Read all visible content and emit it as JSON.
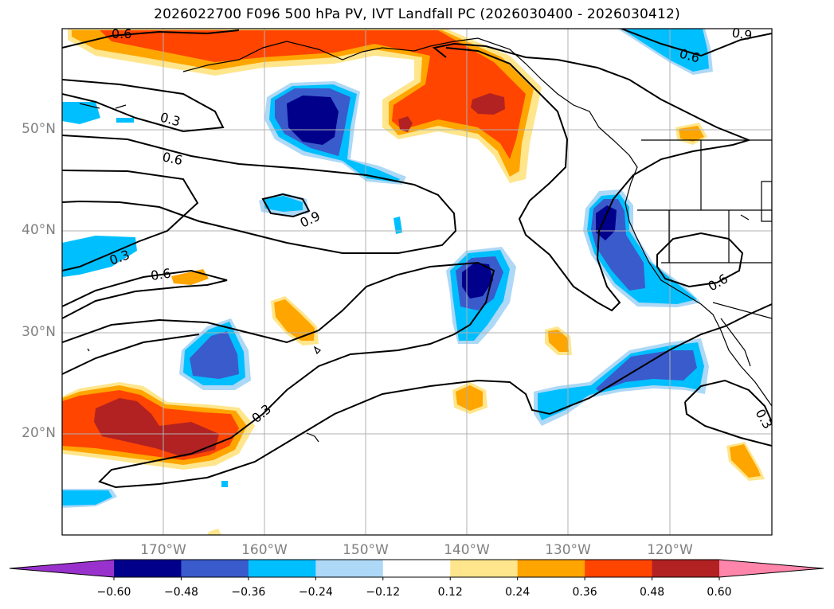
{
  "title": "2026022700 F096 500 hPa PV, IVT Landfall PC (2026030400 - 2026030412)",
  "lat_ticks": [
    "50°N",
    "40°N",
    "30°N",
    "20°N"
  ],
  "lon_ticks": [
    "170°W",
    "160°W",
    "150°W",
    "140°W",
    "130°W",
    "120°W"
  ],
  "contour_labels": {
    "c1": "0.6",
    "c2": "0.9",
    "c3": "0.3",
    "c4": "0.6",
    "c5": "0.6",
    "c6": "0.9",
    "c7": "0.3",
    "c8": "0.6",
    "c9": "0.3",
    "c10": "0.6",
    "c11": "0.3"
  },
  "colorbar": {
    "labels": [
      "−0.60",
      "−0.48",
      "−0.36",
      "−0.24",
      "−0.12",
      "0.12",
      "0.24",
      "0.36",
      "0.48",
      "0.60"
    ],
    "colors": [
      "#9932cc",
      "#00008b",
      "#3a5bcc",
      "#00bfff",
      "#add8f6",
      "#ffffff",
      "#ffe68c",
      "#ffa500",
      "#ff4500",
      "#b22222",
      "#ff85aa"
    ]
  },
  "chart_data": {
    "type": "contour-map",
    "projection": "PlateCarree",
    "extent_lon": [
      -180,
      -110
    ],
    "extent_lat": [
      10,
      60
    ],
    "shading_field": "PV/IVT landfall PC regression (shaded)",
    "contour_field": "500 hPa PV (black lines)",
    "shading_levels": [
      -0.6,
      -0.48,
      -0.36,
      -0.24,
      -0.12,
      0.12,
      0.24,
      0.36,
      0.48,
      0.6
    ],
    "contour_levels_labeled": [
      0.3,
      0.6,
      0.9
    ]
  }
}
